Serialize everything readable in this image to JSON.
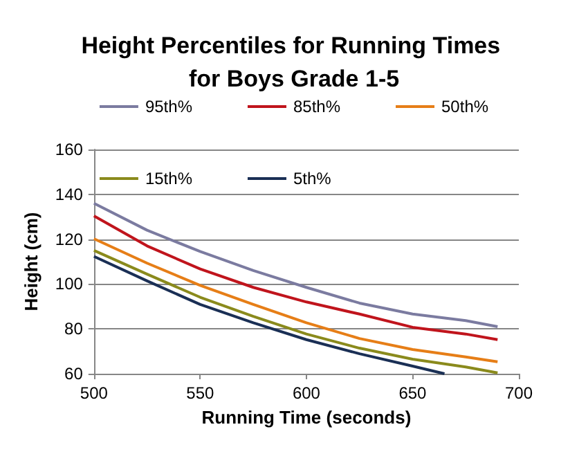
{
  "chart_data": {
    "type": "line",
    "title": "Height Percentiles for Running Times for Boys Grade 1-5",
    "xlabel": "Running Time (seconds)",
    "ylabel": "Height (cm)",
    "x": [
      500,
      525,
      550,
      575,
      600,
      625,
      650,
      675,
      690
    ],
    "xlim": [
      500,
      700
    ],
    "xticks": [
      500,
      550,
      600,
      650,
      700
    ],
    "ylim": [
      60,
      160
    ],
    "yticks": [
      60,
      80,
      100,
      120,
      140,
      160
    ],
    "grid": "y",
    "legend": "top",
    "marker": "none",
    "line_style": "solid",
    "series": [
      {
        "name": "95th%",
        "color": "#7b7ba0",
        "values": [
          136,
          124,
          114.5,
          106,
          98.5,
          91.5,
          86.6,
          83.7,
          81
        ]
      },
      {
        "name": "85th%",
        "color": "#c0141c",
        "values": [
          130.4,
          117,
          106.7,
          98.5,
          92,
          86.6,
          80.7,
          77.7,
          75.2
        ]
      },
      {
        "name": "50th%",
        "color": "#e67e17",
        "values": [
          120.2,
          109.3,
          99.4,
          90.9,
          82.7,
          75.7,
          70.8,
          67.5,
          65.3
        ]
      },
      {
        "name": "15th%",
        "color": "#8a8a1c",
        "values": [
          115,
          104.4,
          94.1,
          85.6,
          77.7,
          71.4,
          66.5,
          63,
          60.4
        ]
      },
      {
        "name": "5th%",
        "color": "#1a2f55",
        "x": [
          500,
          525,
          550,
          575,
          600,
          625,
          650,
          665
        ],
        "values": [
          112.3,
          101.4,
          90.9,
          82.7,
          75.2,
          68.9,
          63.4,
          60
        ]
      }
    ]
  }
}
